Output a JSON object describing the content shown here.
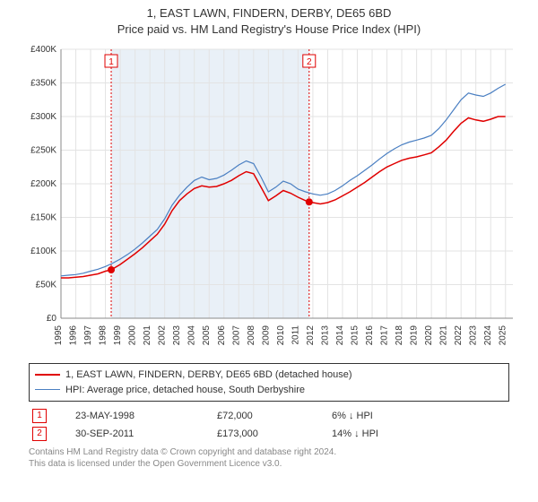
{
  "title": {
    "line1": "1, EAST LAWN, FINDERN, DERBY, DE65 6BD",
    "line2": "Price paid vs. HM Land Registry's House Price Index (HPI)",
    "fontsize": 13
  },
  "chart": {
    "type": "line",
    "background_color": "#ffffff",
    "plot_band_color": "#e9f0f7",
    "plot_band_start": 1998.4,
    "plot_band_end": 2011.75,
    "grid_color": "#e3e3e3",
    "xlim": [
      1995,
      2025.5
    ],
    "ylim": [
      0,
      400000
    ],
    "ytick_step": 50000,
    "ytick_labels": [
      "£0",
      "£50K",
      "£100K",
      "£150K",
      "£200K",
      "£250K",
      "£300K",
      "£350K",
      "£400K"
    ],
    "xtick_start": 1995,
    "xtick_end": 2025,
    "xtick_step": 1,
    "series_red": {
      "label": "1, EAST LAWN, FINDERN, DERBY, DE65 6BD (detached house)",
      "color": "#e00000",
      "line_width": 1.5,
      "data": [
        [
          1995.0,
          60000
        ],
        [
          1995.5,
          60000
        ],
        [
          1996.0,
          61000
        ],
        [
          1996.5,
          62000
        ],
        [
          1997.0,
          64000
        ],
        [
          1997.5,
          66000
        ],
        [
          1998.0,
          70000
        ],
        [
          1998.39,
          72000
        ],
        [
          1999.0,
          80000
        ],
        [
          1999.5,
          88000
        ],
        [
          2000.0,
          96000
        ],
        [
          2000.5,
          105000
        ],
        [
          2001.0,
          115000
        ],
        [
          2001.5,
          125000
        ],
        [
          2002.0,
          140000
        ],
        [
          2002.5,
          160000
        ],
        [
          2003.0,
          175000
        ],
        [
          2003.5,
          185000
        ],
        [
          2004.0,
          193000
        ],
        [
          2004.5,
          197000
        ],
        [
          2005.0,
          195000
        ],
        [
          2005.5,
          196000
        ],
        [
          2006.0,
          200000
        ],
        [
          2006.5,
          205000
        ],
        [
          2007.0,
          212000
        ],
        [
          2007.5,
          218000
        ],
        [
          2008.0,
          215000
        ],
        [
          2008.5,
          195000
        ],
        [
          2009.0,
          175000
        ],
        [
          2009.5,
          182000
        ],
        [
          2010.0,
          190000
        ],
        [
          2010.5,
          186000
        ],
        [
          2011.0,
          180000
        ],
        [
          2011.5,
          175000
        ],
        [
          2011.75,
          173000
        ],
        [
          2012.0,
          172000
        ],
        [
          2012.5,
          170000
        ],
        [
          2013.0,
          172000
        ],
        [
          2013.5,
          176000
        ],
        [
          2014.0,
          182000
        ],
        [
          2014.5,
          188000
        ],
        [
          2015.0,
          195000
        ],
        [
          2015.5,
          202000
        ],
        [
          2016.0,
          210000
        ],
        [
          2016.5,
          218000
        ],
        [
          2017.0,
          225000
        ],
        [
          2017.5,
          230000
        ],
        [
          2018.0,
          235000
        ],
        [
          2018.5,
          238000
        ],
        [
          2019.0,
          240000
        ],
        [
          2019.5,
          243000
        ],
        [
          2020.0,
          246000
        ],
        [
          2020.5,
          255000
        ],
        [
          2021.0,
          265000
        ],
        [
          2021.5,
          278000
        ],
        [
          2022.0,
          290000
        ],
        [
          2022.5,
          298000
        ],
        [
          2023.0,
          295000
        ],
        [
          2023.5,
          293000
        ],
        [
          2024.0,
          296000
        ],
        [
          2024.5,
          300000
        ],
        [
          2025.0,
          300000
        ]
      ]
    },
    "series_blue": {
      "label": "HPI: Average price, detached house, South Derbyshire",
      "color": "#4a7fc2",
      "line_width": 1.2,
      "data": [
        [
          1995.0,
          63000
        ],
        [
          1995.5,
          64000
        ],
        [
          1996.0,
          65000
        ],
        [
          1996.5,
          67000
        ],
        [
          1997.0,
          70000
        ],
        [
          1997.5,
          73000
        ],
        [
          1998.0,
          77000
        ],
        [
          1998.5,
          82000
        ],
        [
          1999.0,
          88000
        ],
        [
          1999.5,
          95000
        ],
        [
          2000.0,
          103000
        ],
        [
          2000.5,
          112000
        ],
        [
          2001.0,
          122000
        ],
        [
          2001.5,
          132000
        ],
        [
          2002.0,
          148000
        ],
        [
          2002.5,
          168000
        ],
        [
          2003.0,
          183000
        ],
        [
          2003.5,
          195000
        ],
        [
          2004.0,
          205000
        ],
        [
          2004.5,
          210000
        ],
        [
          2005.0,
          206000
        ],
        [
          2005.5,
          208000
        ],
        [
          2006.0,
          213000
        ],
        [
          2006.5,
          220000
        ],
        [
          2007.0,
          228000
        ],
        [
          2007.5,
          234000
        ],
        [
          2008.0,
          230000
        ],
        [
          2008.5,
          210000
        ],
        [
          2009.0,
          188000
        ],
        [
          2009.5,
          195000
        ],
        [
          2010.0,
          204000
        ],
        [
          2010.5,
          200000
        ],
        [
          2011.0,
          192000
        ],
        [
          2011.5,
          188000
        ],
        [
          2012.0,
          185000
        ],
        [
          2012.5,
          183000
        ],
        [
          2013.0,
          185000
        ],
        [
          2013.5,
          190000
        ],
        [
          2014.0,
          197000
        ],
        [
          2014.5,
          205000
        ],
        [
          2015.0,
          212000
        ],
        [
          2015.5,
          220000
        ],
        [
          2016.0,
          228000
        ],
        [
          2016.5,
          237000
        ],
        [
          2017.0,
          245000
        ],
        [
          2017.5,
          252000
        ],
        [
          2018.0,
          258000
        ],
        [
          2018.5,
          262000
        ],
        [
          2019.0,
          265000
        ],
        [
          2019.5,
          268000
        ],
        [
          2020.0,
          272000
        ],
        [
          2020.5,
          282000
        ],
        [
          2021.0,
          295000
        ],
        [
          2021.5,
          310000
        ],
        [
          2022.0,
          325000
        ],
        [
          2022.5,
          335000
        ],
        [
          2023.0,
          332000
        ],
        [
          2023.5,
          330000
        ],
        [
          2024.0,
          335000
        ],
        [
          2024.5,
          342000
        ],
        [
          2025.0,
          348000
        ]
      ]
    },
    "markers": [
      {
        "n": "1",
        "x": 1998.39,
        "y": 72000,
        "color": "#e00000"
      },
      {
        "n": "2",
        "x": 2011.75,
        "y": 173000,
        "color": "#e00000"
      }
    ],
    "marker_vline_color": "#e00000",
    "marker_vline_dash": "2,2"
  },
  "legend": {
    "items": [
      {
        "style": "red",
        "label": "1, EAST LAWN, FINDERN, DERBY, DE65 6BD (detached house)"
      },
      {
        "style": "blue",
        "label": "HPI: Average price, detached house, South Derbyshire"
      }
    ]
  },
  "table": {
    "rows": [
      {
        "n": "1",
        "date": "23-MAY-1998",
        "price": "£72,000",
        "pct": "6%",
        "arrow": "↓",
        "vs": "HPI"
      },
      {
        "n": "2",
        "date": "30-SEP-2011",
        "price": "£173,000",
        "pct": "14%",
        "arrow": "↓",
        "vs": "HPI"
      }
    ]
  },
  "footer": {
    "line1": "Contains HM Land Registry data © Crown copyright and database right 2024.",
    "line2": "This data is licensed under the Open Government Licence v3.0."
  },
  "axis_label_fontsize": 10,
  "text_color": "#333333",
  "footer_color": "#888888"
}
